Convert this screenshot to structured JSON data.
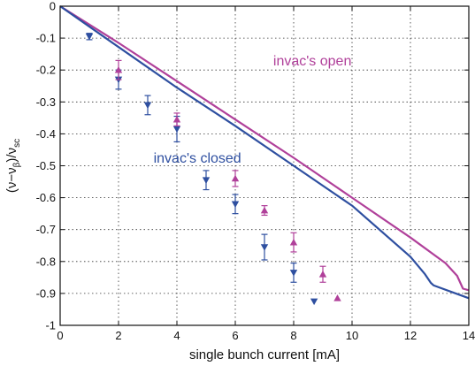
{
  "chart_data": {
    "type": "line",
    "xlabel": "single bunch current [mA]",
    "ylabel": "(ν−ν",
    "ylabel_sub1": "β",
    "ylabel_mid": ")/ν",
    "ylabel_sub2": "sc",
    "xlim": [
      0,
      14
    ],
    "ylim": [
      -1,
      0
    ],
    "x_ticks": [
      0,
      2,
      4,
      6,
      8,
      10,
      12,
      14
    ],
    "x_tick_labels": [
      "0",
      "2",
      "4",
      "6",
      "8",
      "10",
      "12",
      "14"
    ],
    "y_ticks": [
      0,
      -0.1,
      -0.2,
      -0.3,
      -0.4,
      -0.5,
      -0.6,
      -0.7,
      -0.8,
      -0.9,
      -1
    ],
    "y_tick_labels": [
      "0",
      "-0.1",
      "-0.2",
      "-0.3",
      "-0.4",
      "-0.5",
      "-0.6",
      "-0.7",
      "-0.8",
      "-0.9",
      "-1"
    ],
    "grid": true,
    "annotations": [
      {
        "text": "invac's open",
        "x": 7.3,
        "y": -0.185,
        "color": "#b0409a"
      },
      {
        "text": "invac's closed",
        "x": 3.2,
        "y": -0.49,
        "color": "#2e4fa0"
      }
    ],
    "series": [
      {
        "kind": "line",
        "color": "#b0409a",
        "x": [
          0,
          2,
          4,
          6,
          8,
          10,
          12,
          13.2,
          13.6,
          13.8,
          14
        ],
        "y": [
          0,
          -0.115,
          -0.235,
          -0.355,
          -0.475,
          -0.6,
          -0.725,
          -0.805,
          -0.845,
          -0.885,
          -0.89
        ]
      },
      {
        "kind": "line",
        "color": "#2e4fa0",
        "x": [
          0,
          2,
          4,
          6,
          8,
          10,
          12,
          12.5,
          12.7,
          12.8,
          14
        ],
        "y": [
          0,
          -0.128,
          -0.255,
          -0.375,
          -0.5,
          -0.625,
          -0.785,
          -0.84,
          -0.867,
          -0.875,
          -0.915
        ]
      },
      {
        "kind": "points",
        "marker": "triangle-down",
        "color": "#2e4fa0",
        "x": [
          1,
          2,
          3,
          4,
          5,
          6,
          7,
          8,
          8.7
        ],
        "y": [
          -0.095,
          -0.23,
          -0.31,
          -0.385,
          -0.545,
          -0.62,
          -0.755,
          -0.835,
          -0.925
        ],
        "err": [
          0.01,
          0.03,
          0.03,
          0.04,
          0.03,
          0.03,
          0.04,
          0.03,
          0
        ]
      },
      {
        "kind": "points",
        "marker": "triangle-up",
        "color": "#b0409a",
        "x": [
          2,
          4,
          6,
          7,
          8,
          9,
          9.5
        ],
        "y": [
          -0.2,
          -0.355,
          -0.54,
          -0.64,
          -0.74,
          -0.84,
          -0.915
        ],
        "err": [
          0.03,
          0.02,
          0.025,
          0.015,
          0.03,
          0.025,
          0
        ]
      }
    ]
  }
}
